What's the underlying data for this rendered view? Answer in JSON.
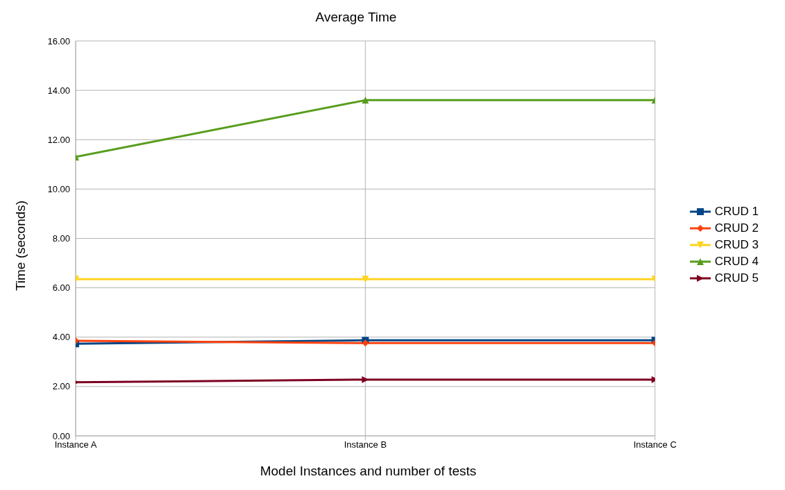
{
  "chart_data": {
    "type": "line",
    "title": "Average Time",
    "xlabel": "Model Instances and number of tests",
    "ylabel": "Time (seconds)",
    "categories": [
      "Instance A",
      "Instance B",
      "Instance C"
    ],
    "series": [
      {
        "name": "CRUD 1",
        "color": "#004586",
        "marker": "square",
        "values": [
          3.73,
          3.87,
          3.87
        ]
      },
      {
        "name": "CRUD 2",
        "color": "#ff420e",
        "marker": "diamond",
        "values": [
          3.85,
          3.76,
          3.76
        ]
      },
      {
        "name": "CRUD 3",
        "color": "#ffd320",
        "marker": "triangle-down",
        "values": [
          6.35,
          6.35,
          6.35
        ]
      },
      {
        "name": "CRUD 4",
        "color": "#579d1c",
        "marker": "triangle",
        "values": [
          11.3,
          13.6,
          13.6
        ]
      },
      {
        "name": "CRUD 5",
        "color": "#7e0021",
        "marker": "triangle-right",
        "values": [
          2.17,
          2.28,
          2.28
        ]
      }
    ],
    "ylim": [
      0,
      16
    ],
    "yticks": [
      {
        "value": 0,
        "label": "0.00"
      },
      {
        "value": 2,
        "label": "2.00"
      },
      {
        "value": 4,
        "label": "4.00"
      },
      {
        "value": 6,
        "label": "6.00"
      },
      {
        "value": 8,
        "label": "8.00"
      },
      {
        "value": 10,
        "label": "10.00"
      },
      {
        "value": 12,
        "label": "12.00"
      },
      {
        "value": 14,
        "label": "14.00"
      },
      {
        "value": 16,
        "label": "16.00"
      }
    ],
    "grid": true,
    "legend": "right",
    "line_style": "solid"
  }
}
